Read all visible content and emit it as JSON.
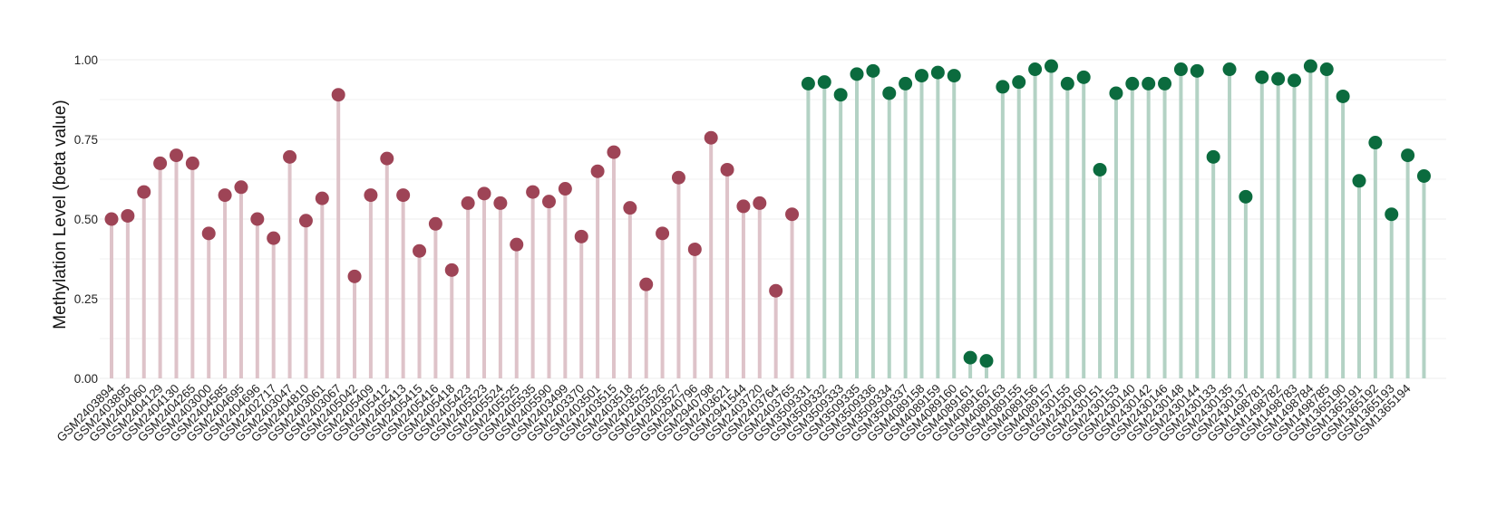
{
  "chart_data": {
    "type": "scatter",
    "subtype": "lollipop",
    "title": "",
    "xlabel": "",
    "ylabel": "Methylation Level (beta value)",
    "ylim": [
      0,
      1.02
    ],
    "yticks": [
      "0.00",
      "0.25",
      "0.50",
      "0.75",
      "1.00"
    ],
    "grid": true,
    "legend": "none",
    "colors": {
      "group_a_point": "#9e4456",
      "group_a_stem": "#dec3c9",
      "group_b_point": "#0b6b3e",
      "group_b_stem": "#b3d2c4",
      "grid": "#eeeeee"
    },
    "categories": [
      "GSM2403894",
      "GSM2403895",
      "GSM2404060",
      "GSM2404129",
      "GSM2404130",
      "GSM2404265",
      "GSM2403000",
      "GSM2404585",
      "GSM2404695",
      "GSM2404696",
      "GSM2402717",
      "GSM2403047",
      "GSM2404810",
      "GSM2403061",
      "GSM2403067",
      "GSM2405042",
      "GSM2405409",
      "GSM2405412",
      "GSM2405413",
      "GSM2405415",
      "GSM2405416",
      "GSM2405418",
      "GSM2405423",
      "GSM2405523",
      "GSM2405524",
      "GSM2405525",
      "GSM2405535",
      "GSM2405590",
      "GSM2403499",
      "GSM2403370",
      "GSM2403501",
      "GSM2403515",
      "GSM2403518",
      "GSM2403525",
      "GSM2403526",
      "GSM2403527",
      "GSM2940796",
      "GSM2940798",
      "GSM2403621",
      "GSM2941544",
      "GSM2403720",
      "GSM2403764",
      "GSM2403765",
      "GSM3509331",
      "GSM3509332",
      "GSM3509333",
      "GSM3509335",
      "GSM3509336",
      "GSM3509334",
      "GSM3509337",
      "GSM4089158",
      "GSM4089159",
      "GSM4089160",
      "GSM4089161",
      "GSM4089162",
      "GSM4089163",
      "GSM4089155",
      "GSM4089156",
      "GSM4089157",
      "GSM2430155",
      "GSM2430160",
      "GSM2430151",
      "GSM2430153",
      "GSM2430140",
      "GSM2430142",
      "GSM2430146",
      "GSM2430148",
      "GSM2430144",
      "GSM2430133",
      "GSM2430135",
      "GSM2430137",
      "GSM1498781",
      "GSM1498782",
      "GSM1498783",
      "GSM1498784",
      "GSM1498785",
      "GSM1365190",
      "GSM1365191",
      "GSM1365192",
      "GSM1365193",
      "GSM1365194"
    ],
    "series": [
      {
        "group": "a",
        "values": [
          0.5,
          0.51,
          0.585,
          0.675,
          0.7,
          0.675,
          0.455,
          0.575,
          0.6,
          0.5,
          0.44,
          0.695,
          0.495,
          0.565,
          0.89,
          0.32,
          0.575,
          0.69,
          0.575,
          0.4,
          0.485,
          0.34,
          0.55,
          0.58,
          0.55,
          0.42,
          0.585,
          0.555,
          0.595,
          0.445,
          0.65,
          0.71,
          0.535,
          0.295,
          0.455,
          0.63,
          0.405,
          0.755,
          0.655,
          0.54,
          0.55,
          0.275,
          0.515
        ]
      },
      {
        "group": "b",
        "values": [
          0.925,
          0.93,
          0.89,
          0.955,
          0.965,
          0.895,
          0.925,
          0.95,
          0.96,
          0.95,
          0.065,
          0.055,
          0.915,
          0.93,
          0.97,
          0.98,
          0.925,
          0.945,
          0.655,
          0.895,
          0.925,
          0.925,
          0.925,
          0.97,
          0.965,
          0.695,
          0.97,
          0.57,
          0.945,
          0.94,
          0.935,
          0.98,
          0.97,
          0.885,
          0.62,
          0.74,
          0.515,
          0.7,
          0.635
        ]
      }
    ]
  }
}
